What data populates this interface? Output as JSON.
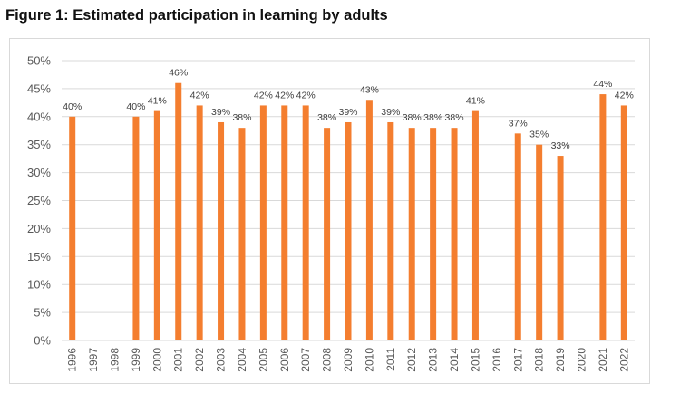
{
  "page": {
    "title": "Figure 1: Estimated participation in learning by adults"
  },
  "colors": {
    "bar": "#f47e2f",
    "grid": "#d9d9d9",
    "text": "#595959"
  },
  "chart_data": {
    "type": "bar",
    "title": "Figure 1: Estimated participation in learning by adults",
    "xlabel": "",
    "ylabel": "",
    "ylim": [
      0,
      50
    ],
    "yticks": [
      0,
      5,
      10,
      15,
      20,
      25,
      30,
      35,
      40,
      45,
      50
    ],
    "ytick_labels": [
      "0%",
      "5%",
      "10%",
      "15%",
      "20%",
      "25%",
      "30%",
      "35%",
      "40%",
      "45%",
      "50%"
    ],
    "grid": true,
    "categories": [
      "1996",
      "1997",
      "1998",
      "1999",
      "2000",
      "2001",
      "2002",
      "2003",
      "2004",
      "2005",
      "2006",
      "2007",
      "2008",
      "2009",
      "2010",
      "2011",
      "2012",
      "2013",
      "2014",
      "2015",
      "2016",
      "2017",
      "2018",
      "2019",
      "2020",
      "2021",
      "2022"
    ],
    "values": [
      40,
      null,
      null,
      40,
      41,
      46,
      42,
      39,
      38,
      42,
      42,
      42,
      38,
      39,
      43,
      39,
      38,
      38,
      38,
      41,
      null,
      37,
      35,
      33,
      null,
      44,
      42
    ],
    "data_labels": [
      "40%",
      "",
      "",
      "40%",
      "41%",
      "46%",
      "42%",
      "39%",
      "38%",
      "42%",
      "42%",
      "42%",
      "38%",
      "39%",
      "43%",
      "39%",
      "38%",
      "38%",
      "38%",
      "41%",
      "",
      "37%",
      "35%",
      "33%",
      "",
      "44%",
      "42%"
    ]
  }
}
